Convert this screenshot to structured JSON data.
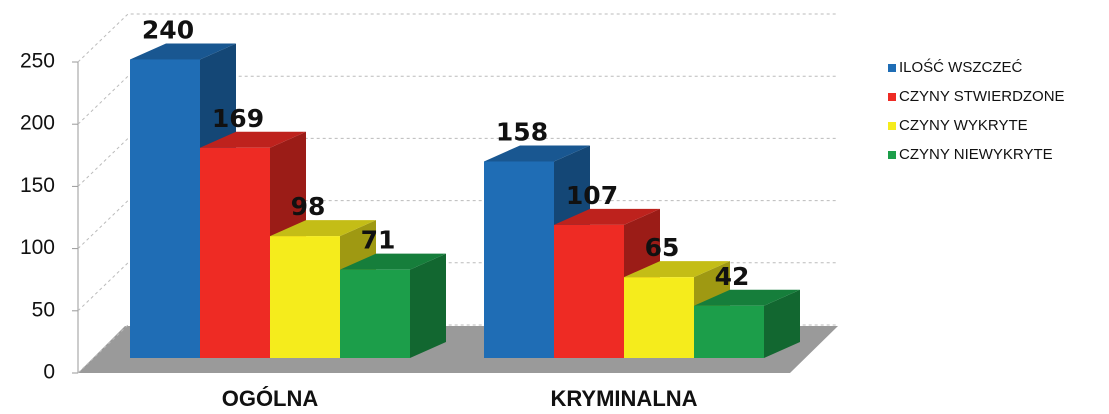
{
  "chart_data": {
    "type": "bar3d",
    "categories": [
      "OGÓLNA",
      "KRYMINALNA"
    ],
    "series": [
      {
        "name": "ILOŚĆ WSZCZEĆ",
        "color": "#1f6db5",
        "values": [
          240,
          158
        ]
      },
      {
        "name": "CZYNY STWIERDZONE",
        "color": "#ee2b24",
        "values": [
          169,
          107
        ]
      },
      {
        "name": "CZYNY WYKRYTE",
        "color": "#f5ec1c",
        "values": [
          98,
          65
        ]
      },
      {
        "name": "CZYNY NIEWYKRYTE",
        "color": "#1c9e4a",
        "values": [
          71,
          42
        ]
      }
    ],
    "ylim": [
      0,
      250
    ],
    "yticks": [
      0,
      50,
      100,
      150,
      200,
      250
    ],
    "grid": true,
    "legend": "right"
  }
}
